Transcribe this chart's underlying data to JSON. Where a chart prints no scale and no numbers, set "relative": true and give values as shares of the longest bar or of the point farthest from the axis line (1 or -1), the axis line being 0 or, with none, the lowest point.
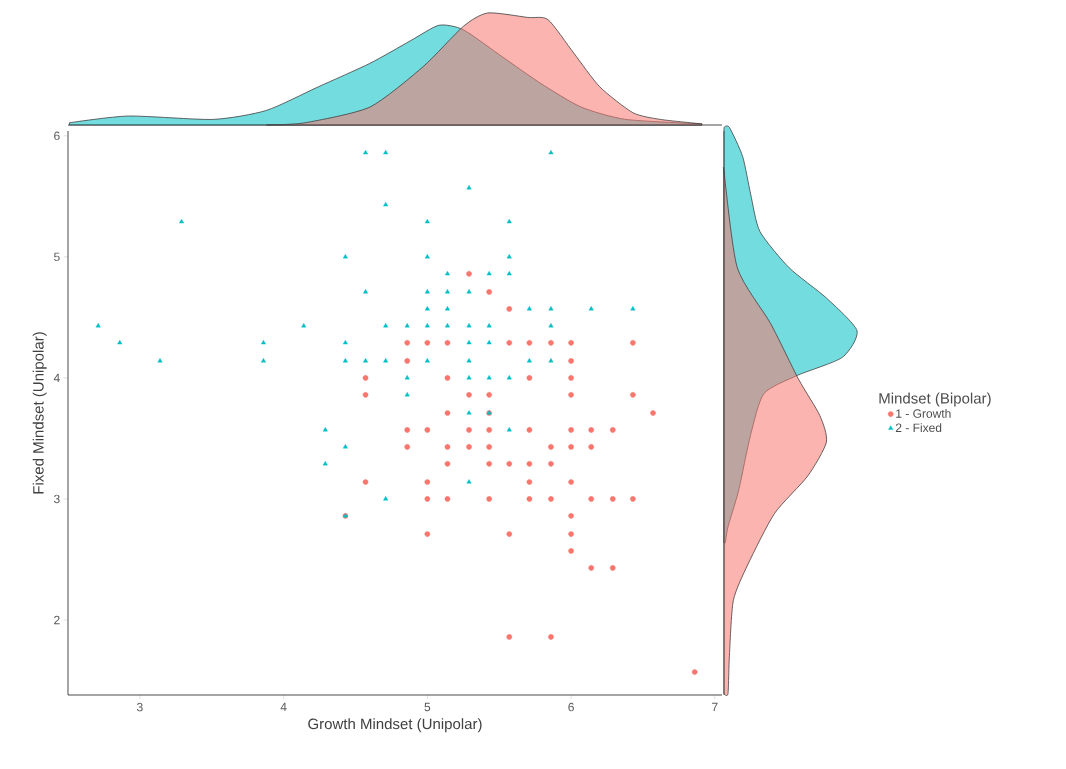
{
  "chart_data": [
    {
      "type": "scatter",
      "xlabel": "Growth Mindset (Unipolar)",
      "ylabel": "Fixed Mindset (Unipolar)",
      "legend_title": "Mindset (Bipolar)",
      "legend": "right",
      "xlim": [
        2.5,
        7.05
      ],
      "ylim": [
        1.38,
        6.04
      ],
      "xticks": [
        3,
        4,
        5,
        6,
        7
      ],
      "yticks": [
        2,
        3,
        4,
        5,
        6
      ],
      "series": [
        {
          "name": "1 - Growth",
          "color": "#f8766d",
          "marker": "circle",
          "x": [
            4.57,
            4.57,
            4.57,
            4.43,
            5.29,
            5.43,
            5.57,
            4.86,
            5,
            5.14,
            5.57,
            5.71,
            5.86,
            6,
            6.43,
            4.86,
            6,
            5.14,
            5.71,
            6,
            5.29,
            5.43,
            6,
            6.43,
            5.14,
            5.43,
            6.57,
            4.86,
            5,
            5.29,
            5.43,
            5.71,
            6,
            6.14,
            6.29,
            4.86,
            5.14,
            5.29,
            5.43,
            5.86,
            6,
            6.14,
            5.14,
            5.43,
            5.57,
            5.71,
            5.86,
            5,
            5.71,
            6,
            5,
            5.14,
            5.43,
            5.71,
            5.86,
            6.14,
            6.29,
            6.43,
            6,
            5,
            5.57,
            6,
            6,
            6.14,
            6.29,
            5.57,
            5.86,
            6.86
          ],
          "values": [
            4,
            3.86,
            3.14,
            2.86,
            4.86,
            4.71,
            4.57,
            4.29,
            4.29,
            4.29,
            4.29,
            4.29,
            4.29,
            4.29,
            4.29,
            4.14,
            4.14,
            4,
            4,
            4,
            3.86,
            3.86,
            3.86,
            3.86,
            3.71,
            3.71,
            3.71,
            3.57,
            3.57,
            3.57,
            3.57,
            3.57,
            3.57,
            3.57,
            3.57,
            3.43,
            3.43,
            3.43,
            3.43,
            3.43,
            3.43,
            3.43,
            3.29,
            3.29,
            3.29,
            3.29,
            3.29,
            3.14,
            3.14,
            3.14,
            3,
            3,
            3,
            3,
            3,
            3,
            3,
            3,
            2.86,
            2.71,
            2.71,
            2.71,
            2.57,
            2.43,
            2.43,
            1.86,
            1.86,
            1.57
          ]
        },
        {
          "name": "2 - Fixed",
          "color": "#00bfc4",
          "marker": "triangle",
          "x": [
            4.57,
            4.71,
            5.86,
            5.29,
            4.71,
            3.29,
            5,
            5.57,
            4.43,
            5,
            5.57,
            5.14,
            5.43,
            5.57,
            4.57,
            5,
            5.14,
            5.29,
            5,
            5.14,
            5.71,
            5.86,
            6.14,
            6.43,
            2.71,
            4.14,
            4.71,
            4.86,
            5,
            5.14,
            5.29,
            5.43,
            5.86,
            2.86,
            3.86,
            4.43,
            5.29,
            5.43,
            3.14,
            3.86,
            4.43,
            4.57,
            4.71,
            5,
            5.29,
            5.71,
            5.86,
            4.86,
            5.29,
            5.43,
            5.57,
            4.86,
            5.29,
            5.43,
            4.29,
            5.57,
            4.43,
            4.29,
            5.29,
            4.71,
            4.43
          ],
          "values": [
            5.86,
            5.86,
            5.86,
            5.57,
            5.43,
            5.29,
            5.29,
            5.29,
            5,
            5,
            5,
            4.86,
            4.86,
            4.86,
            4.71,
            4.71,
            4.71,
            4.71,
            4.57,
            4.57,
            4.57,
            4.57,
            4.57,
            4.57,
            4.43,
            4.43,
            4.43,
            4.43,
            4.43,
            4.43,
            4.43,
            4.43,
            4.43,
            4.29,
            4.29,
            4.29,
            4.29,
            4.29,
            4.14,
            4.14,
            4.14,
            4.14,
            4.14,
            4.14,
            4.14,
            4.14,
            4.14,
            4,
            4,
            4,
            4,
            3.86,
            3.71,
            3.71,
            3.57,
            3.57,
            3.43,
            3.29,
            3.14,
            3,
            2.86
          ]
        }
      ]
    },
    {
      "type": "area",
      "relative": true,
      "tick_labels": false,
      "xlim": [
        2.5,
        7.05
      ],
      "series": [
        {
          "color": "#00bfc4",
          "x": [
            2.51,
            2.92,
            3.51,
            3.88,
            4.24,
            4.6,
            4.88,
            5.08,
            5.25,
            5.52,
            5.79,
            6.07,
            6.38,
            6.91
          ],
          "values": [
            0.02,
            0.08,
            0.05,
            0.13,
            0.34,
            0.55,
            0.75,
            0.89,
            0.85,
            0.61,
            0.37,
            0.16,
            0.05,
            0.01
          ]
        },
        {
          "color": "#f8766d",
          "x": [
            3.88,
            4.15,
            4.6,
            4.97,
            5.25,
            5.42,
            5.7,
            5.84,
            6.02,
            6.2,
            6.43,
            6.62,
            6.91
          ],
          "values": [
            0,
            0.02,
            0.16,
            0.52,
            0.88,
            1,
            0.96,
            0.94,
            0.64,
            0.34,
            0.11,
            0.05,
            0.01
          ]
        }
      ]
    },
    {
      "type": "area",
      "relative": true,
      "tick_labels": false,
      "orientation": "horizontal",
      "ylim": [
        1.38,
        6.04
      ],
      "series": [
        {
          "color": "#00bfc4",
          "x": [
            6.07,
            5.83,
            5.52,
            5.21,
            4.91,
            4.66,
            4.39,
            4.17,
            4.02,
            3.87,
            3.53,
            3.07,
            2.77,
            2.64
          ],
          "values": [
            0.04,
            0.14,
            0.2,
            0.27,
            0.49,
            0.77,
            1,
            0.89,
            0.55,
            0.3,
            0.2,
            0.11,
            0.03,
            0.01
          ]
        },
        {
          "color": "#f8766d",
          "x": [
            5.7,
            4.91,
            4.45,
            3.99,
            3.69,
            3.47,
            3.19,
            2.88,
            2.46,
            2.16,
            1.69,
            1.39
          ],
          "values": [
            0,
            0.1,
            0.35,
            0.56,
            0.72,
            0.77,
            0.63,
            0.38,
            0.18,
            0.07,
            0.04,
            0.03
          ]
        }
      ]
    }
  ]
}
